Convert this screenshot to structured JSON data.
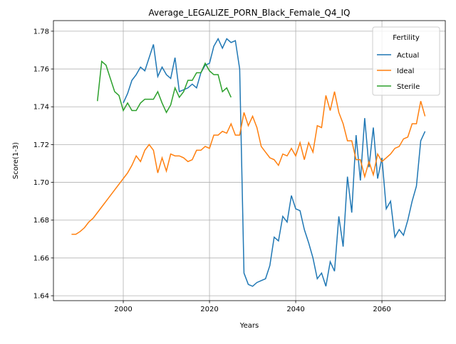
{
  "chart_data": {
    "type": "line",
    "title": "Average_LEGALIZE_PORN_Black_Female_Q4_IQ",
    "xlabel": "Years",
    "ylabel": "Score(1-3)",
    "legend_title": "Fertility",
    "legend": "upper right",
    "grid": true,
    "x": [
      1988,
      1989,
      1990,
      1991,
      1992,
      1993,
      1994,
      1995,
      1996,
      1997,
      1998,
      1999,
      2000,
      2001,
      2002,
      2003,
      2004,
      2005,
      2006,
      2007,
      2008,
      2009,
      2010,
      2011,
      2012,
      2013,
      2014,
      2015,
      2016,
      2017,
      2018,
      2019,
      2020,
      2021,
      2022,
      2023,
      2024,
      2025,
      2026,
      2027,
      2028,
      2029,
      2030,
      2031,
      2032,
      2033,
      2034,
      2035,
      2036,
      2037,
      2038,
      2039,
      2040,
      2041,
      2042,
      2043,
      2044,
      2045,
      2046,
      2047,
      2048,
      2049,
      2050,
      2051,
      2052,
      2053,
      2054,
      2055,
      2056,
      2057,
      2058,
      2059,
      2060,
      2061,
      2062,
      2063,
      2064,
      2065,
      2066,
      2067,
      2068,
      2069,
      2070
    ],
    "series": [
      {
        "name": "Actual",
        "color": "#1f77b4",
        "values": [
          null,
          null,
          null,
          null,
          null,
          null,
          null,
          null,
          null,
          null,
          null,
          null,
          1.742,
          1.747,
          1.754,
          1.757,
          1.761,
          1.759,
          1.766,
          1.773,
          1.756,
          1.761,
          1.757,
          1.755,
          1.766,
          1.748,
          1.749,
          1.75,
          1.752,
          1.75,
          1.758,
          1.762,
          1.763,
          1.772,
          1.776,
          1.771,
          1.776,
          1.774,
          1.775,
          1.76,
          1.652,
          1.646,
          1.645,
          1.647,
          1.648,
          1.649,
          1.656,
          1.671,
          1.669,
          1.682,
          1.679,
          1.693,
          1.686,
          1.685,
          1.675,
          1.668,
          1.66,
          1.649,
          1.652,
          1.645,
          1.658,
          1.653,
          1.682,
          1.666,
          1.703,
          1.684,
          1.725,
          1.701,
          1.734,
          1.708,
          1.729,
          1.702,
          1.713,
          1.686,
          1.69,
          1.671,
          1.675,
          1.672,
          1.68,
          1.69,
          1.698,
          1.722,
          1.727
        ]
      },
      {
        "name": "Ideal",
        "color": "#ff7f0e",
        "values": [
          1.6725,
          1.6725,
          1.674,
          1.676,
          1.679,
          1.681,
          1.684,
          1.687,
          1.69,
          1.693,
          1.696,
          1.699,
          1.702,
          1.705,
          1.709,
          1.714,
          1.711,
          1.717,
          1.72,
          1.717,
          1.705,
          1.713,
          1.706,
          1.715,
          1.714,
          1.714,
          1.713,
          1.711,
          1.712,
          1.717,
          1.717,
          1.719,
          1.718,
          1.725,
          1.725,
          1.727,
          1.726,
          1.731,
          1.725,
          1.725,
          1.737,
          1.73,
          1.735,
          1.729,
          1.719,
          1.716,
          1.713,
          1.712,
          1.709,
          1.715,
          1.714,
          1.718,
          1.714,
          1.721,
          1.712,
          1.721,
          1.716,
          1.73,
          1.729,
          1.746,
          1.738,
          1.748,
          1.737,
          1.731,
          1.722,
          1.722,
          1.712,
          1.712,
          1.703,
          1.711,
          1.704,
          1.715,
          1.711,
          1.713,
          1.715,
          1.718,
          1.719,
          1.723,
          1.724,
          1.731,
          1.731,
          1.743,
          1.735
        ]
      },
      {
        "name": "Sterile",
        "color": "#2ca02c",
        "values": [
          null,
          null,
          null,
          null,
          null,
          null,
          1.743,
          1.764,
          1.762,
          1.755,
          1.748,
          1.746,
          1.738,
          1.742,
          1.738,
          1.738,
          1.742,
          1.744,
          1.744,
          1.744,
          1.748,
          1.742,
          1.737,
          1.741,
          1.75,
          1.745,
          1.748,
          1.754,
          1.754,
          1.758,
          1.758,
          1.763,
          1.759,
          1.757,
          1.757,
          1.748,
          1.75,
          1.745,
          null,
          null,
          null,
          null,
          null,
          null,
          null,
          null,
          null,
          null,
          null,
          null,
          null,
          null,
          null,
          null,
          null,
          null,
          null,
          null,
          null,
          null,
          null,
          null,
          null,
          null,
          null,
          null,
          null,
          null,
          null,
          null,
          null,
          null,
          null,
          null,
          null,
          null,
          null,
          null,
          null,
          null,
          null,
          null,
          null
        ]
      }
    ],
    "xlim": [
      1983.8,
      2074.7
    ],
    "ylim": [
      1.6374,
      1.7856
    ],
    "xticks": [
      2000,
      2020,
      2040,
      2060
    ],
    "yticks": [
      1.64,
      1.66,
      1.68,
      {
        "value": 1.7,
        "label": "1.70"
      },
      1.72,
      1.74,
      1.76,
      1.78
    ]
  }
}
